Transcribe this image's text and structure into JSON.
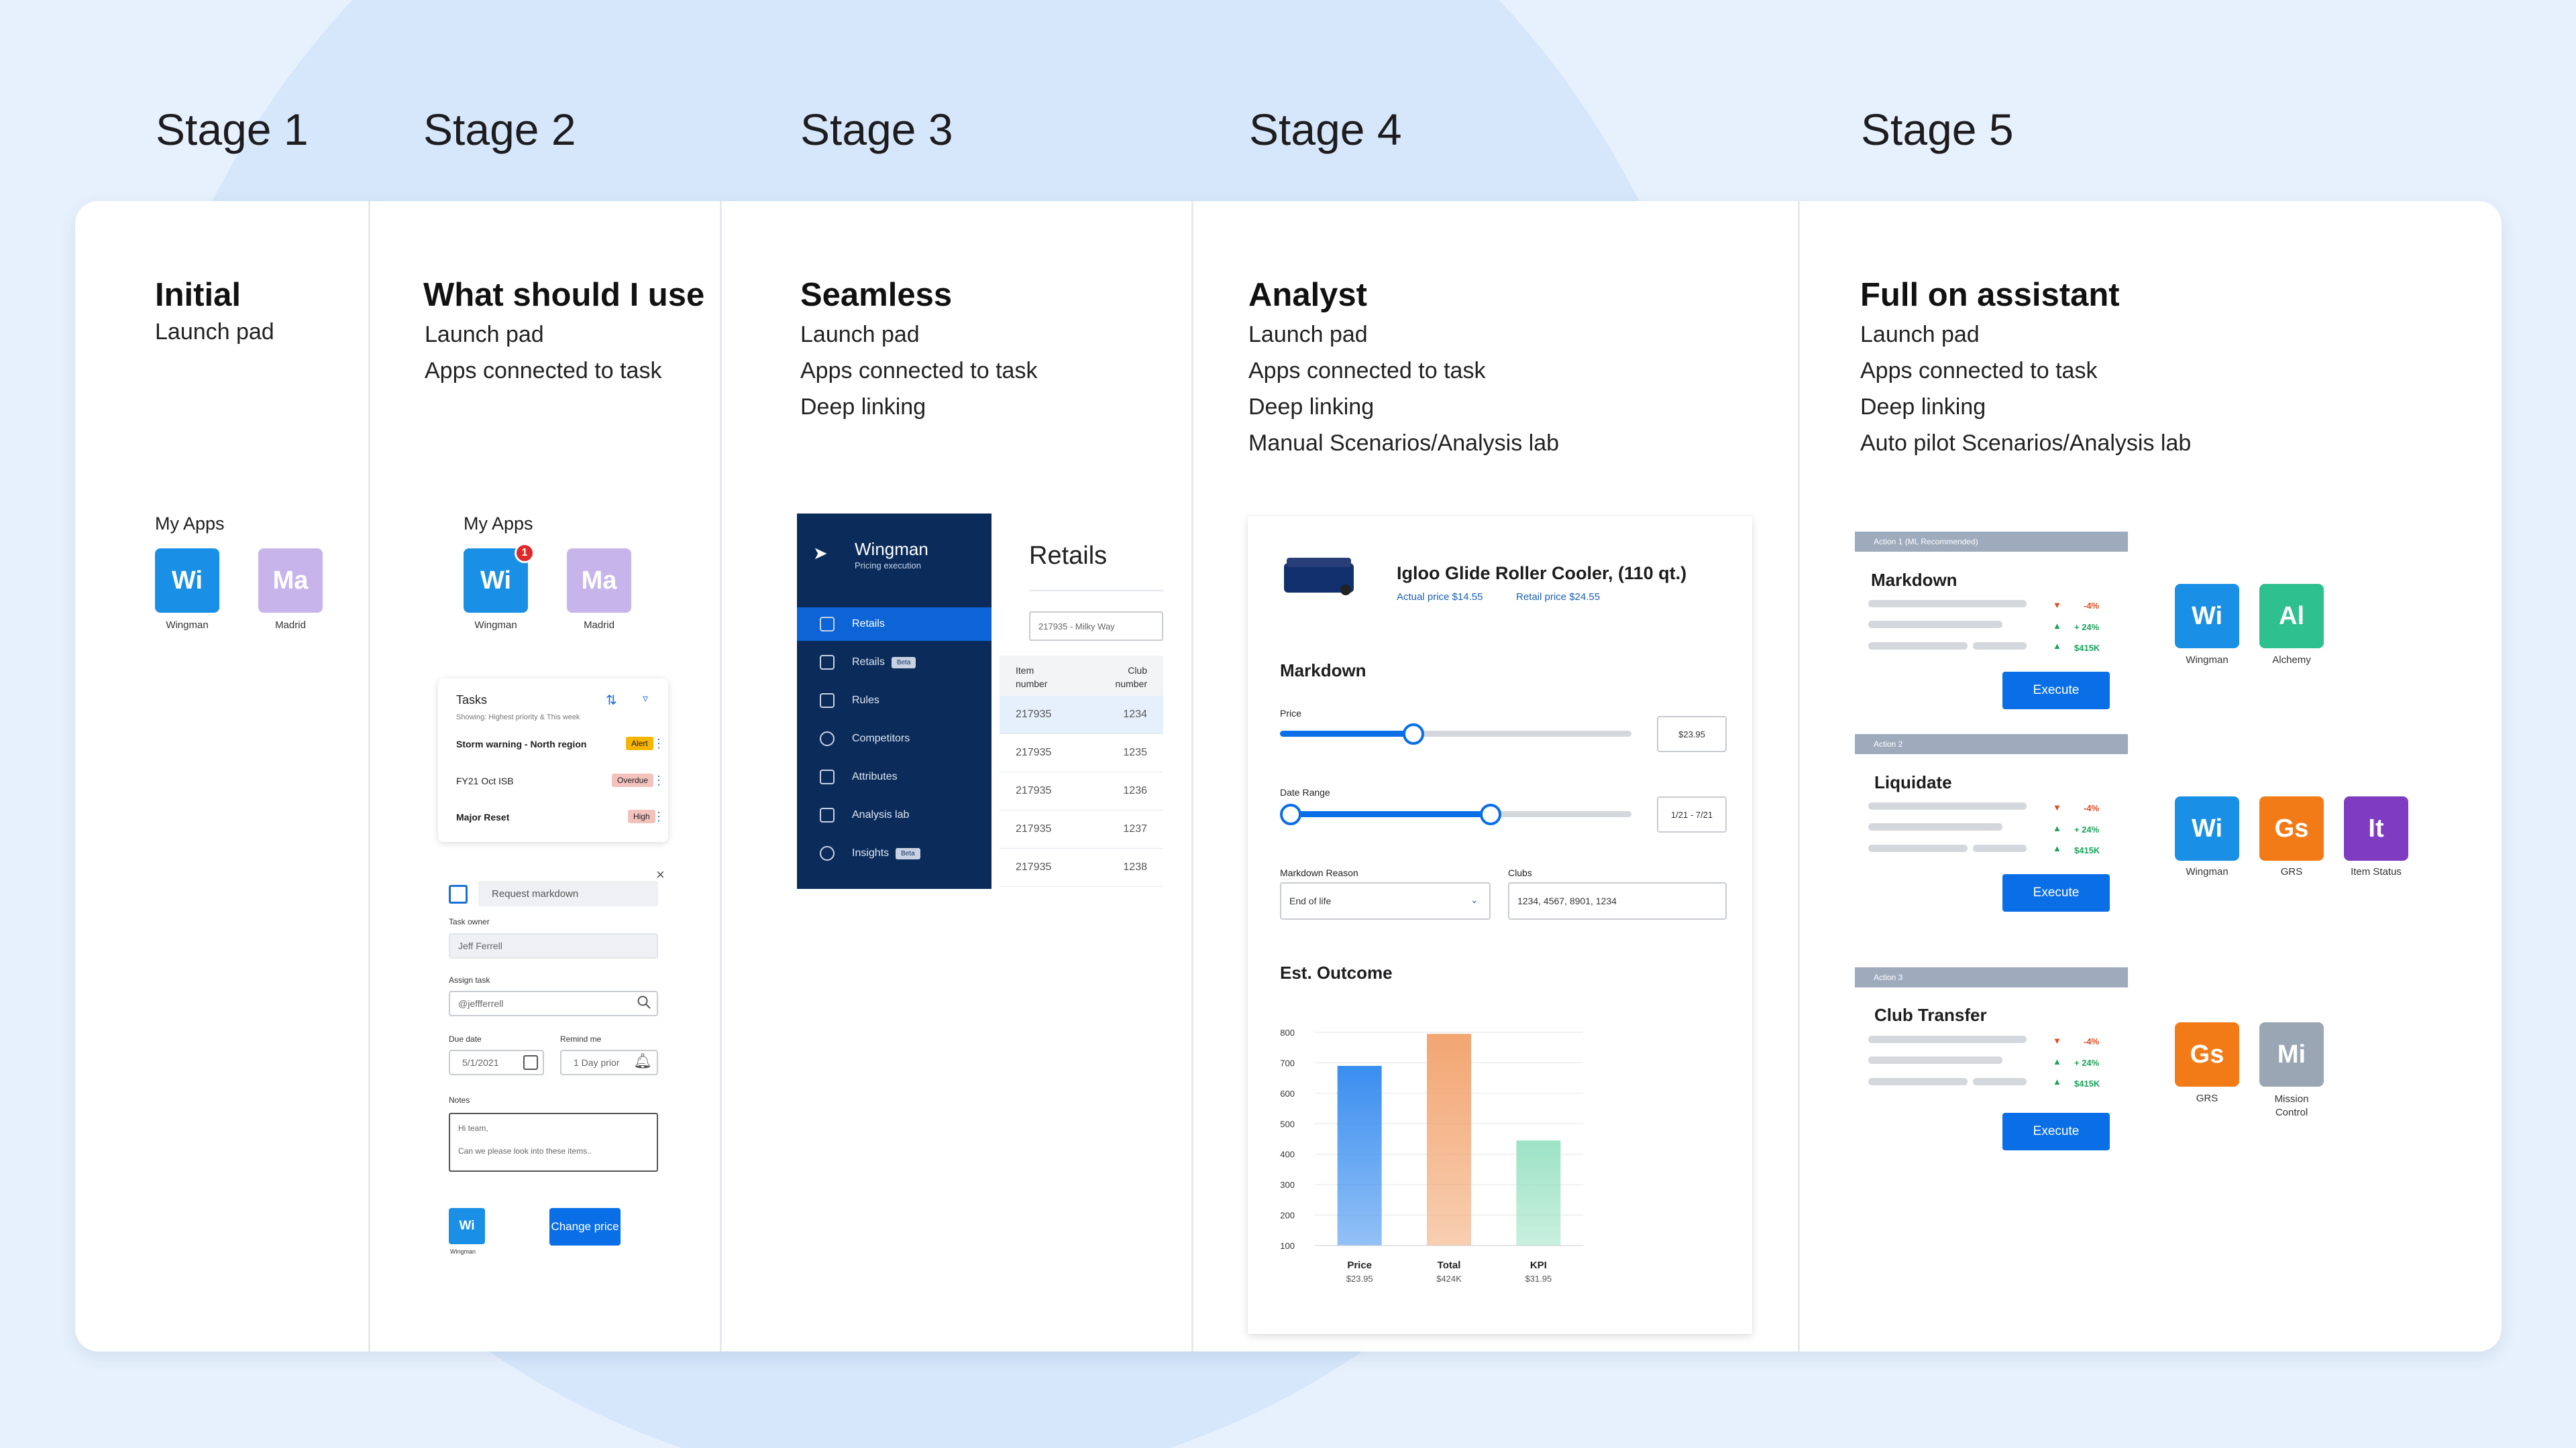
{
  "stages": [
    "Stage 1",
    "Stage 2",
    "Stage 3",
    "Stage 4",
    "Stage 5"
  ],
  "columns": [
    {
      "title": "Initial",
      "features": [
        "Launch pad"
      ]
    },
    {
      "title": "What should I use",
      "features": [
        "Launch pad",
        "Apps connected to task"
      ]
    },
    {
      "title": "Seamless",
      "features": [
        "Launch pad",
        "Apps connected to task",
        "Deep linking"
      ]
    },
    {
      "title": "Analyst",
      "features": [
        "Launch pad",
        "Apps connected to task",
        "Deep linking",
        "Manual Scenarios/Analysis lab"
      ]
    },
    {
      "title": "Full on assistant",
      "features": [
        "Launch pad",
        "Apps connected to task",
        "Deep linking",
        "Auto pilot Scenarios/Analysis lab"
      ]
    }
  ],
  "my_apps_label": "My Apps",
  "apps": {
    "wingman": {
      "abbr": "Wi",
      "name": "Wingman",
      "color": "#1a8fe6"
    },
    "madrid": {
      "abbr": "Ma",
      "name": "Madrid",
      "color": "#c7b4ea"
    },
    "alchemy": {
      "abbr": "Al",
      "name": "Alchemy",
      "color": "#2fc08f"
    },
    "grs": {
      "abbr": "Gs",
      "name": "GRS",
      "color": "#f27b18"
    },
    "item_status": {
      "abbr": "It",
      "name": "Item Status",
      "color": "#7f3bc2"
    },
    "mission_control": {
      "abbr": "Mi",
      "name": "Mission Control",
      "color": "#9aa6b4"
    }
  },
  "badge_count": "1",
  "tasks": {
    "title": "Tasks",
    "subtitle": "Showing: Highest priority & This week",
    "items": [
      {
        "name": "Storm warning - North region",
        "tag": "Alert",
        "tag_color": "#f7b500"
      },
      {
        "name": "FY21 Oct ISB",
        "tag": "Overdue",
        "tag_color": "#f3c2bd"
      },
      {
        "name": "Major Reset",
        "tag": "High",
        "tag_color": "#f3c2bd"
      }
    ]
  },
  "form": {
    "close": "×",
    "request": "Request markdown",
    "task_owner_label": "Task owner",
    "task_owner": "Jeff Ferrell",
    "assign_label": "Assign task",
    "assign": "@jeffferrell",
    "due_label": "Due date",
    "due": "5/1/2021",
    "remind_label": "Remind me",
    "remind": "1 Day prior",
    "notes_label": "Notes",
    "notes_line1": "Hi team,",
    "notes_line2": "Can we please look into these items..",
    "app_abbr": "Wi",
    "app_name": "Wingman",
    "action": "Change price"
  },
  "wingman_nav": {
    "brand": "Wingman",
    "sub": "Pricing execution",
    "items": [
      "Retails",
      "Retails",
      "Rules",
      "Competitors",
      "Attributes",
      "Analysis lab",
      "Insights"
    ],
    "beta": "Beta"
  },
  "retails": {
    "title": "Retails",
    "search": "217935 - Milky Way",
    "col1a": "Item",
    "col1b": "number",
    "col2a": "Club",
    "col2b": "number",
    "rows": [
      [
        "217935",
        "1234"
      ],
      [
        "217935",
        "1235"
      ],
      [
        "217935",
        "1236"
      ],
      [
        "217935",
        "1237"
      ],
      [
        "217935",
        "1238"
      ]
    ]
  },
  "product": {
    "name": "Igloo Glide Roller Cooler, (110 qt.)",
    "actual": "Actual price $14.55",
    "retail": "Retail price $24.55",
    "section": "Markdown",
    "price_label": "Price",
    "price_value": "$23.95",
    "price_fraction": 0.38,
    "date_label": "Date Range",
    "date_value": "1/21 - 7/21",
    "date_start": 0.03,
    "date_end": 0.6,
    "reason_label": "Markdown Reason",
    "reason": "End of life",
    "clubs_label": "Clubs",
    "clubs": "1234, 4567, 8901, 1234",
    "outcome": "Est. Outcome"
  },
  "chart_data": {
    "type": "bar",
    "categories": [
      "Price",
      "Total",
      "KPI"
    ],
    "sublabels": [
      "$23.95",
      "$424K",
      "$31.95"
    ],
    "values": [
      690,
      795,
      445
    ],
    "yticks": [
      800,
      700,
      600,
      500,
      400,
      300,
      200,
      100
    ],
    "ylim": [
      100,
      800
    ],
    "colors": [
      "#3a8eef",
      "#f2a672",
      "#9de3c6"
    ]
  },
  "actions": [
    {
      "header": "Action 1 (ML Recommended)",
      "title": "Markdown",
      "execute": "Execute"
    },
    {
      "header": "Action 2",
      "title": "Liquidate",
      "execute": "Execute"
    },
    {
      "header": "Action 3",
      "title": "Club Transfer",
      "execute": "Execute"
    }
  ],
  "deltas": [
    "-4%",
    "+ 24%",
    "$415K"
  ]
}
